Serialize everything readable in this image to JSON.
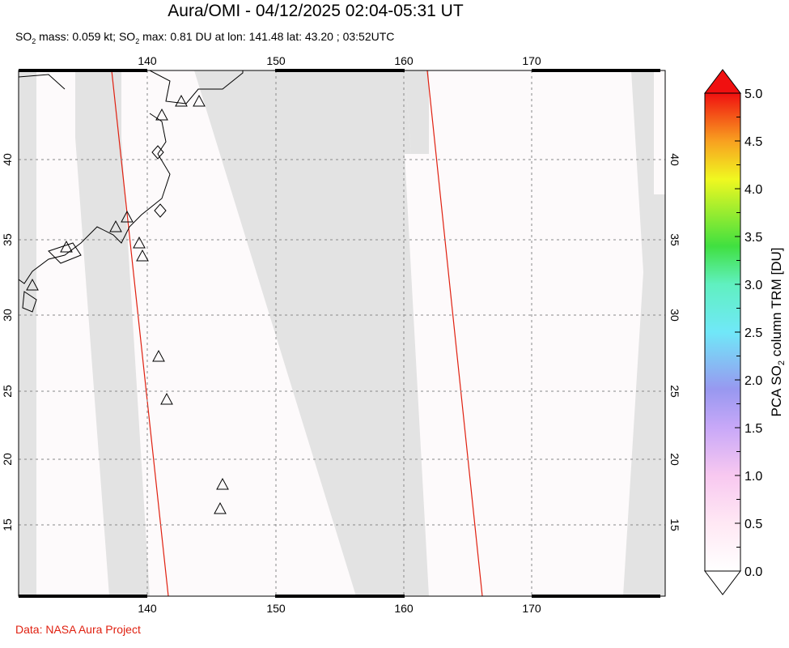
{
  "header": {
    "title": "Aura/OMI - 04/12/2025 02:04-05:31 UT",
    "subtitle_parts": [
      "SO",
      "2",
      " mass: 0.059 kt; SO",
      "2",
      " max: 0.81 DU at lon: 141.48 lat: 43.20 ; 03:52UTC"
    ]
  },
  "map": {
    "lon_ticks": [
      "140",
      "150",
      "160",
      "170"
    ],
    "lat_ticks": [
      "40",
      "35",
      "30",
      "25",
      "20",
      "15"
    ],
    "lon_range": [
      130,
      180
    ],
    "lat_range": [
      10,
      45
    ],
    "no_data_color": "#e3e3e3",
    "orbit_line_color": "#e02010",
    "volcano_marker": "triangle-icon"
  },
  "colorbar": {
    "ticks": [
      "5.0",
      "4.5",
      "4.0",
      "3.5",
      "3.0",
      "2.5",
      "2.0",
      "1.5",
      "1.0",
      "0.5",
      "0.0"
    ],
    "label_parts": [
      "PCA SO",
      "2",
      " column TRM [DU]"
    ],
    "range": [
      0,
      5
    ],
    "colors": [
      "#ffffff",
      "#ffd8f0",
      "#d0a8f8",
      "#9090f0",
      "#70e8f0",
      "#40e040",
      "#f0f020",
      "#f07010",
      "#f01010"
    ]
  },
  "footer": {
    "credit": "Data: NASA Aura Project"
  }
}
